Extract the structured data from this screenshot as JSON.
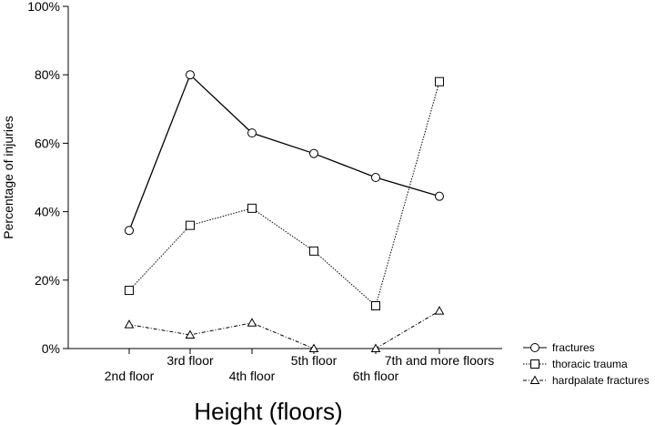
{
  "chart_data": {
    "type": "line",
    "categories": [
      "2nd floor",
      "3rd floor",
      "4th floor",
      "5th floor",
      "6th floor",
      "7th and more floors"
    ],
    "series": [
      {
        "name": "fractures",
        "values": [
          34.5,
          80,
          63,
          57,
          50,
          44.5
        ],
        "marker": "circle",
        "dash": "solid"
      },
      {
        "name": "thoracic trauma",
        "values": [
          17,
          36,
          41,
          28.5,
          12.5,
          78
        ],
        "marker": "square",
        "dash": "dotted"
      },
      {
        "name": "hardpalate fractures",
        "values": [
          7,
          4,
          7.5,
          0,
          0,
          11
        ],
        "marker": "triangle",
        "dash": "dashdot"
      }
    ],
    "y_ticks": [
      "0%",
      "20%",
      "40%",
      "60%",
      "80%",
      "100%"
    ],
    "ylim": [
      0,
      100
    ],
    "xlabel": "Height (floors)",
    "ylabel": "Percentage of injuries",
    "title": "",
    "grid": false,
    "legend_position": "bottom-right"
  }
}
